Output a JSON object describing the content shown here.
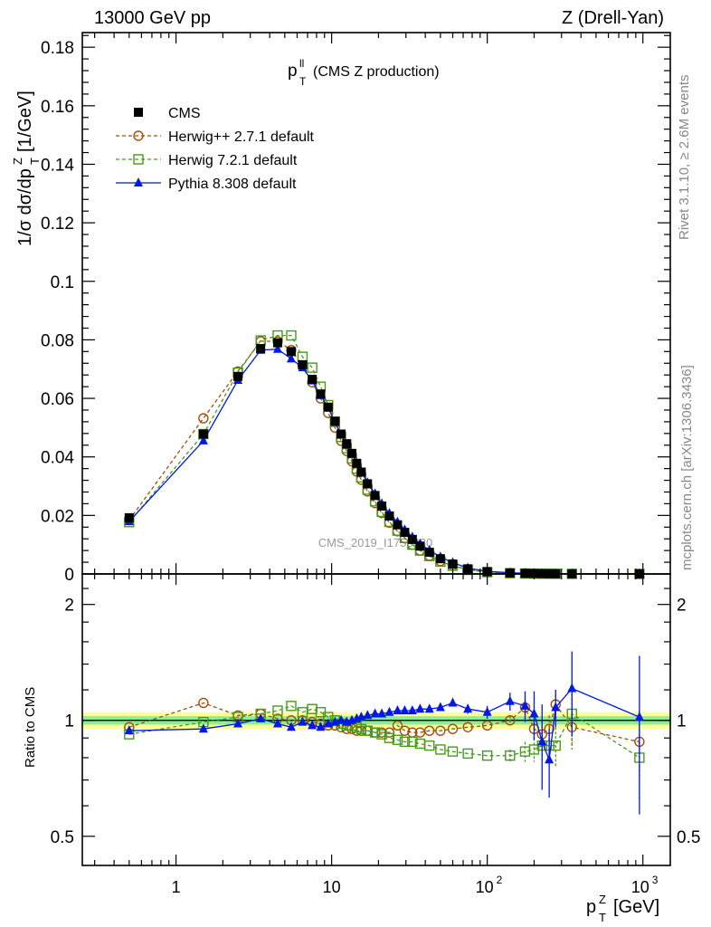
{
  "header": {
    "left": "13000 GeV pp",
    "right": "Z (Drell-Yan)"
  },
  "side_labels": {
    "rivet": "Rivet 3.1.10, ≥ 2.6M events",
    "mcplots": "mcplots.cern.ch [arXiv:1306.3436]"
  },
  "watermark": "CMS_2019_I1753680",
  "colors": {
    "CMS": "#000000",
    "Herwig++ 2.7.1 default": "#a0500a",
    "Herwig 7.2.1 default": "#4a9a1a",
    "Pythia 8.308 default": "#0018e8",
    "band_outer": "#ffff99",
    "band_inner": "#88ee99"
  },
  "chart_data": [
    {
      "type": "line",
      "panel": "main",
      "title": "(CMS Z production)",
      "title_symbol": "p",
      "title_sup": "ll",
      "title_sub": "T",
      "ylabel": "1/σ dσ/dp",
      "ylabel_sup": "Z",
      "ylabel_sub": "T",
      "ylabel_unit": "[1/GeV]",
      "xscale": "log",
      "xlim": [
        0.25,
        1500
      ],
      "ylim": [
        0,
        0.185
      ],
      "yticks": [
        "0",
        "0.02",
        "0.04",
        "0.06",
        "0.08",
        "0.1",
        "0.12",
        "0.14",
        "0.16",
        "0.18"
      ],
      "legend_position": "top-left",
      "x": [
        0.5,
        1.5,
        2.5,
        3.5,
        4.5,
        5.5,
        6.5,
        7.5,
        8.5,
        9.5,
        10.5,
        11.5,
        12.5,
        13.5,
        14.5,
        15.5,
        17,
        19,
        21,
        23.5,
        26.5,
        29.5,
        33,
        37,
        42.5,
        50,
        60,
        75,
        100,
        140,
        175,
        200,
        225,
        250,
        275,
        350,
        950
      ],
      "series": [
        {
          "name": "CMS",
          "marker": "square-filled",
          "values": [
            0.0192,
            0.0478,
            0.0675,
            0.077,
            0.079,
            0.076,
            0.0715,
            0.0665,
            0.0615,
            0.057,
            0.0522,
            0.0478,
            0.0445,
            0.0412,
            0.0378,
            0.0348,
            0.0308,
            0.0268,
            0.0232,
            0.0198,
            0.0168,
            0.0142,
            0.0118,
            0.0095,
            0.0074,
            0.0052,
            0.0034,
            0.00175,
            0.0008,
            0.00035,
            0.0002,
            0.00015,
            0.00011,
            8e-05,
            6e-05,
            4e-05,
            8e-06
          ]
        },
        {
          "name": "Herwig++ 2.7.1 default",
          "marker": "circle-open",
          "values": [
            0.0184,
            0.0532,
            0.0692,
            0.0795,
            0.0795,
            0.0765,
            0.0712,
            0.0655,
            0.06,
            0.055,
            0.05,
            0.0455,
            0.042,
            0.0385,
            0.035,
            0.0322,
            0.0282,
            0.0242,
            0.0208,
            0.0175,
            0.0146,
            0.0122,
            0.01,
            0.008,
            0.0062,
            0.0044,
            0.0029,
            0.0015,
            0.00068,
            0.0003,
            0.00017,
            0.00013,
            0.0001,
            7e-05,
            5e-05,
            3.5e-05,
            7e-06
          ]
        },
        {
          "name": "Herwig 7.2.1 default",
          "marker": "square-open",
          "values": [
            0.0177,
            0.0478,
            0.0688,
            0.0798,
            0.0815,
            0.0815,
            0.0742,
            0.0705,
            0.064,
            0.0577,
            0.052,
            0.0468,
            0.043,
            0.0395,
            0.036,
            0.033,
            0.0288,
            0.0248,
            0.0212,
            0.0178,
            0.0148,
            0.0123,
            0.01,
            0.008,
            0.0061,
            0.0042,
            0.0028,
            0.0014,
            0.0006,
            0.00026,
            0.00015,
            0.00011,
            9e-05,
            7e-05,
            5e-05,
            3e-05,
            6e-06
          ]
        },
        {
          "name": "Pythia 8.308 default",
          "marker": "triangle-filled",
          "values": [
            0.0179,
            0.0455,
            0.0662,
            0.0765,
            0.0768,
            0.0735,
            0.0705,
            0.066,
            0.061,
            0.0568,
            0.0518,
            0.0475,
            0.044,
            0.041,
            0.0378,
            0.035,
            0.0312,
            0.0274,
            0.024,
            0.0207,
            0.0177,
            0.0151,
            0.0126,
            0.0103,
            0.0081,
            0.0058,
            0.0039,
            0.002,
            0.0009,
            0.0004,
            0.00022,
            0.00016,
            0.0001,
            7e-05,
            5e-05,
            5e-05,
            1e-05
          ]
        }
      ]
    },
    {
      "type": "line",
      "panel": "ratio",
      "ylabel": "Ratio to CMS",
      "xlabel": "p",
      "xlabel_sup": "Z",
      "xlabel_sub": "T",
      "xlabel_unit": "[GeV]",
      "xscale": "log",
      "yscale": "log",
      "xlim": [
        0.25,
        1500
      ],
      "ylim": [
        0.42,
        2.4
      ],
      "yticks": [
        "0.5",
        "1",
        "2"
      ],
      "xticks": [
        "1",
        "10",
        "10^2",
        "10^3"
      ],
      "x": [
        0.5,
        1.5,
        2.5,
        3.5,
        4.5,
        5.5,
        6.5,
        7.5,
        8.5,
        9.5,
        10.5,
        11.5,
        12.5,
        13.5,
        14.5,
        15.5,
        17,
        19,
        21,
        23.5,
        26.5,
        29.5,
        33,
        37,
        42.5,
        50,
        60,
        75,
        100,
        140,
        175,
        200,
        225,
        250,
        275,
        350,
        950
      ],
      "band_inner": [
        0.975,
        1.025
      ],
      "band_outer": [
        0.95,
        1.05
      ],
      "series": [
        {
          "name": "Herwig++ 2.7.1 default",
          "marker": "circle-open",
          "values": [
            0.96,
            1.11,
            1.03,
            1.04,
            1.01,
            1.0,
            1.0,
            0.99,
            0.98,
            0.97,
            0.97,
            0.96,
            0.95,
            0.95,
            0.94,
            0.94,
            0.94,
            0.93,
            0.93,
            0.93,
            0.97,
            0.94,
            0.93,
            0.93,
            0.94,
            0.94,
            0.95,
            0.96,
            0.97,
            1.0,
            1.08,
            0.95,
            0.92,
            0.95,
            1.1,
            0.96,
            0.88
          ],
          "errors": [
            0,
            0,
            0,
            0,
            0,
            0,
            0,
            0,
            0,
            0,
            0,
            0,
            0,
            0,
            0,
            0,
            0,
            0,
            0,
            0,
            0,
            0,
            0,
            0,
            0,
            0,
            0,
            0,
            0,
            0.03,
            0.05,
            0.06,
            0.08,
            0.08,
            0.1,
            0.1,
            0.18
          ]
        },
        {
          "name": "Herwig 7.2.1 default",
          "marker": "square-open",
          "values": [
            0.92,
            0.99,
            1.02,
            1.04,
            1.06,
            1.09,
            1.05,
            1.07,
            1.05,
            1.02,
            1.0,
            0.98,
            0.97,
            0.97,
            0.96,
            0.95,
            0.94,
            0.93,
            0.92,
            0.9,
            0.89,
            0.88,
            0.88,
            0.87,
            0.86,
            0.84,
            0.83,
            0.82,
            0.81,
            0.81,
            0.83,
            0.84,
            0.86,
            0.86,
            0.86,
            1.04,
            0.8
          ],
          "errors": [
            0,
            0,
            0,
            0,
            0,
            0,
            0,
            0,
            0,
            0,
            0,
            0,
            0,
            0,
            0,
            0,
            0,
            0,
            0,
            0,
            0,
            0,
            0,
            0,
            0,
            0,
            0,
            0,
            0,
            0.03,
            0.05,
            0.06,
            0.08,
            0.09,
            0.1,
            0.2,
            0.18
          ]
        },
        {
          "name": "Pythia 8.308 default",
          "marker": "triangle-filled",
          "values": [
            0.94,
            0.95,
            0.98,
            1.01,
            0.98,
            0.96,
            0.99,
            0.97,
            0.96,
            0.98,
            0.99,
            1.0,
            0.99,
            1.0,
            1.01,
            1.02,
            1.03,
            1.04,
            1.04,
            1.05,
            1.06,
            1.06,
            1.06,
            1.07,
            1.07,
            1.08,
            1.11,
            1.07,
            1.05,
            1.12,
            1.09,
            1.04,
            0.88,
            0.79,
            1.08,
            1.21,
            1.02
          ],
          "errors": [
            0,
            0,
            0,
            0,
            0,
            0,
            0,
            0,
            0,
            0,
            0,
            0,
            0,
            0,
            0,
            0,
            0,
            0,
            0,
            0,
            0,
            0,
            0,
            0,
            0,
            0.02,
            0.02,
            0.03,
            0.04,
            0.06,
            0.1,
            0.15,
            0.22,
            0.16,
            0.12,
            0.3,
            0.45
          ]
        }
      ]
    }
  ]
}
